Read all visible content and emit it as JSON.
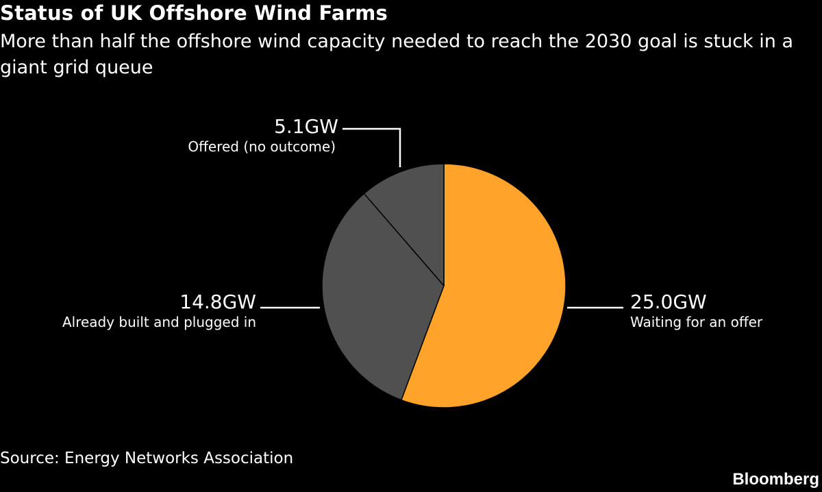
{
  "header": {
    "title": "Status of UK Offshore Wind Farms",
    "subtitle": "More than half the offshore wind capacity needed to reach the 2030 goal is stuck in a giant grid queue"
  },
  "chart_data": {
    "type": "pie",
    "title": "Status of UK Offshore Wind Farms",
    "subtitle": "More than half the offshore wind capacity needed to reach the 2030 goal is stuck in a giant grid queue",
    "unit": "GW",
    "slices": [
      {
        "label": "Waiting for an offer",
        "value": 25.0,
        "value_label": "25.0GW",
        "color": "#ffa32a"
      },
      {
        "label": "Already built and plugged in",
        "value": 14.8,
        "value_label": "14.8GW",
        "color": "#505050"
      },
      {
        "label": "Offered (no outcome)",
        "value": 5.1,
        "value_label": "5.1GW",
        "color": "#505050"
      }
    ],
    "slice_border_color": "#000000",
    "start_angle": "12 o'clock",
    "direction": "clockwise",
    "legend": "none"
  },
  "footer": {
    "source": "Source: Energy Networks Association",
    "brand": "Bloomberg"
  }
}
